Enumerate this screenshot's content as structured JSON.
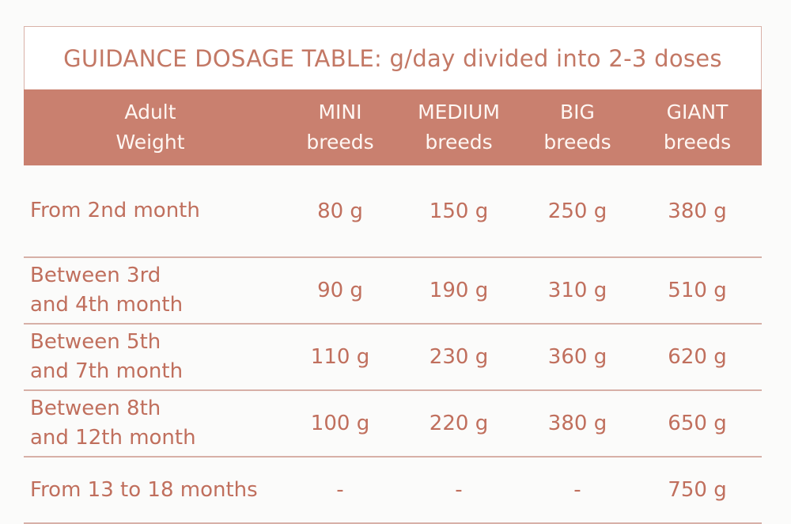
{
  "table": {
    "title": "GUIDANCE DOSAGE TABLE: g/day divided into 2-3 doses",
    "headers": [
      "Adult\nWeight",
      "MINI\nbreeds",
      "MEDIUM\nbreeds",
      "BIG\nbreeds",
      "GIANT\nbreeds"
    ],
    "rows": [
      {
        "label": "From 2nd month",
        "values": [
          "80 g",
          "150 g",
          "250 g",
          "380 g"
        ]
      },
      {
        "label": "Between 3rd\nand 4th month",
        "values": [
          "90 g",
          "190 g",
          "310 g",
          "510 g"
        ]
      },
      {
        "label": "Between 5th\nand 7th month",
        "values": [
          "110 g",
          "230 g",
          "360 g",
          "620 g"
        ]
      },
      {
        "label": "Between 8th\nand 12th month",
        "values": [
          "100 g",
          "220 g",
          "380 g",
          "650 g"
        ]
      },
      {
        "label": "From 13 to 18 months",
        "values": [
          "-",
          "-",
          "-",
          "750 g"
        ]
      }
    ]
  },
  "colors": {
    "header_bg": "#c9806f",
    "text": "#c06f5d",
    "rule": "#d7b0a7"
  }
}
